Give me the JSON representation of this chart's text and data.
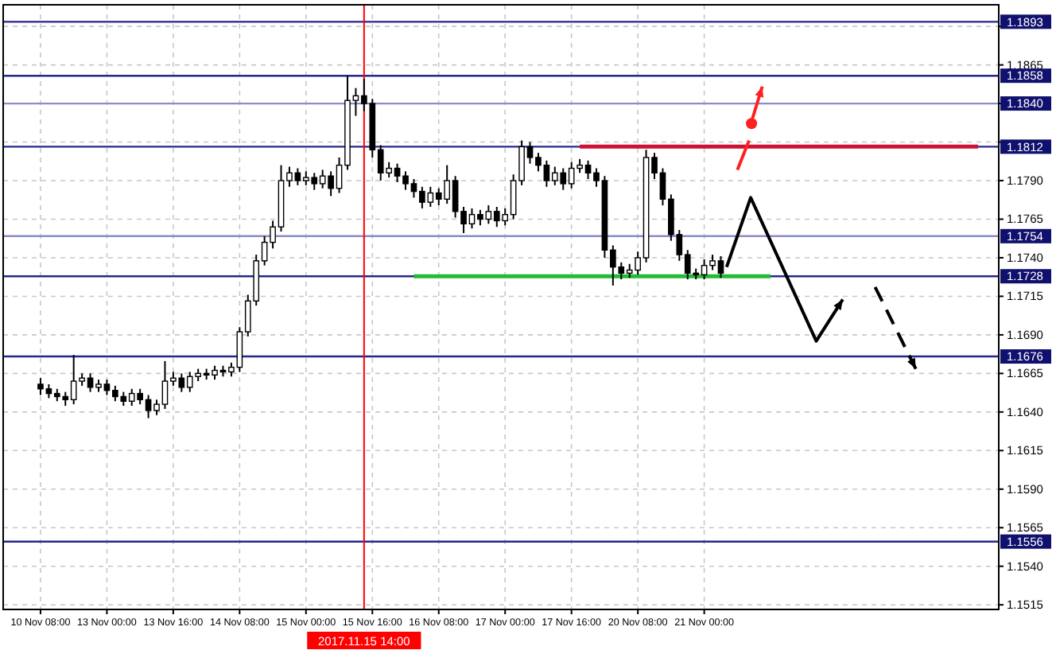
{
  "chart_data": {
    "type": "candlestick",
    "categories": [
      "10 Nov 08:00",
      null,
      null,
      null,
      null,
      null,
      null,
      null,
      "13 Nov 00:00",
      null,
      null,
      null,
      null,
      null,
      null,
      null,
      "13 Nov 16:00",
      null,
      null,
      null,
      null,
      null,
      null,
      null,
      "14 Nov 08:00",
      null,
      null,
      null,
      null,
      null,
      null,
      null,
      "15 Nov 00:00",
      null,
      null,
      null,
      null,
      null,
      null,
      null,
      "15 Nov 16:00",
      null,
      null,
      null,
      null,
      null,
      null,
      null,
      "16 Nov 08:00",
      null,
      null,
      null,
      null,
      null,
      null,
      null,
      "17 Nov 00:00",
      null,
      null,
      null,
      null,
      null,
      null,
      null,
      "17 Nov 16:00",
      null,
      null,
      null,
      null,
      null,
      null,
      null,
      "20 Nov 08:00",
      null,
      null,
      null,
      null,
      null,
      null,
      null,
      "21 Nov 00:00",
      null,
      null,
      null,
      null,
      null,
      null,
      null,
      null,
      null,
      null,
      null,
      null,
      null,
      null,
      null,
      null,
      null,
      null,
      null,
      null,
      null,
      null,
      null,
      null,
      null,
      null,
      null,
      null,
      null,
      null,
      null,
      null,
      null,
      null,
      null
    ],
    "ohlc": [
      [
        1.1658,
        1.1662,
        1.1651,
        1.1655
      ],
      [
        1.1655,
        1.1658,
        1.1649,
        1.1652
      ],
      [
        1.1652,
        1.1655,
        1.1647,
        1.165
      ],
      [
        1.165,
        1.1653,
        1.1644,
        1.1648
      ],
      [
        1.1648,
        1.1677,
        1.1645,
        1.166
      ],
      [
        1.166,
        1.1665,
        1.1657,
        1.1662
      ],
      [
        1.1662,
        1.1665,
        1.1653,
        1.1656
      ],
      [
        1.1656,
        1.1661,
        1.1653,
        1.1658
      ],
      [
        1.1658,
        1.1661,
        1.1651,
        1.1654
      ],
      [
        1.1654,
        1.1657,
        1.1647,
        1.165
      ],
      [
        1.165,
        1.1653,
        1.1644,
        1.1647
      ],
      [
        1.1647,
        1.1655,
        1.1644,
        1.1652
      ],
      [
        1.1652,
        1.1655,
        1.1645,
        1.1648
      ],
      [
        1.1648,
        1.1651,
        1.1636,
        1.1641
      ],
      [
        1.1641,
        1.1648,
        1.1638,
        1.1645
      ],
      [
        1.1645,
        1.1673,
        1.1642,
        1.166
      ],
      [
        1.166,
        1.1666,
        1.1657,
        1.1662
      ],
      [
        1.1662,
        1.1665,
        1.1653,
        1.1656
      ],
      [
        1.1656,
        1.1666,
        1.1653,
        1.1663
      ],
      [
        1.1663,
        1.1668,
        1.166,
        1.1665
      ],
      [
        1.1665,
        1.1668,
        1.1661,
        1.1664
      ],
      [
        1.1664,
        1.167,
        1.1661,
        1.1667
      ],
      [
        1.1667,
        1.167,
        1.1663,
        1.1666
      ],
      [
        1.1666,
        1.1672,
        1.1663,
        1.1669
      ],
      [
        1.1669,
        1.1695,
        1.1666,
        1.1692
      ],
      [
        1.1692,
        1.1716,
        1.1689,
        1.1712
      ],
      [
        1.1712,
        1.1742,
        1.1709,
        1.1738
      ],
      [
        1.1738,
        1.1754,
        1.1735,
        1.175
      ],
      [
        1.175,
        1.1764,
        1.1746,
        1.176
      ],
      [
        1.176,
        1.18,
        1.1757,
        1.179
      ],
      [
        1.179,
        1.1799,
        1.1786,
        1.1795
      ],
      [
        1.1795,
        1.1798,
        1.1787,
        1.179
      ],
      [
        1.179,
        1.1796,
        1.1787,
        1.1792
      ],
      [
        1.1792,
        1.1795,
        1.1784,
        1.1788
      ],
      [
        1.1788,
        1.1797,
        1.1785,
        1.1793
      ],
      [
        1.1793,
        1.1796,
        1.178,
        1.1785
      ],
      [
        1.1785,
        1.1805,
        1.1782,
        1.18
      ],
      [
        1.18,
        1.1858,
        1.1797,
        1.1842
      ],
      [
        1.1842,
        1.185,
        1.1832,
        1.1845
      ],
      [
        1.1845,
        1.1856,
        1.1835,
        1.184
      ],
      [
        1.184,
        1.1843,
        1.1805,
        1.181
      ],
      [
        1.181,
        1.1813,
        1.179,
        1.1795
      ],
      [
        1.1795,
        1.1802,
        1.1792,
        1.1798
      ],
      [
        1.1798,
        1.1801,
        1.1789,
        1.1793
      ],
      [
        1.1793,
        1.1796,
        1.1784,
        1.1788
      ],
      [
        1.1788,
        1.1791,
        1.1779,
        1.1783
      ],
      [
        1.1783,
        1.1786,
        1.1772,
        1.1776
      ],
      [
        1.1776,
        1.1786,
        1.1773,
        1.1782
      ],
      [
        1.1782,
        1.1785,
        1.1774,
        1.1778
      ],
      [
        1.1778,
        1.18,
        1.1775,
        1.179
      ],
      [
        1.179,
        1.1793,
        1.1766,
        1.177
      ],
      [
        1.177,
        1.1773,
        1.1756,
        1.1762
      ],
      [
        1.1762,
        1.1772,
        1.1759,
        1.1768
      ],
      [
        1.1768,
        1.1771,
        1.1761,
        1.1765
      ],
      [
        1.1765,
        1.1774,
        1.1762,
        1.177
      ],
      [
        1.177,
        1.1773,
        1.176,
        1.1764
      ],
      [
        1.1764,
        1.1772,
        1.1761,
        1.1768
      ],
      [
        1.1768,
        1.1794,
        1.1765,
        1.179
      ],
      [
        1.179,
        1.1816,
        1.1787,
        1.1812
      ],
      [
        1.1812,
        1.1815,
        1.1801,
        1.1805
      ],
      [
        1.1805,
        1.1808,
        1.1796,
        1.18
      ],
      [
        1.18,
        1.1803,
        1.1786,
        1.179
      ],
      [
        1.179,
        1.1799,
        1.1787,
        1.1795
      ],
      [
        1.1795,
        1.1798,
        1.1784,
        1.1788
      ],
      [
        1.1788,
        1.1802,
        1.1785,
        1.1798
      ],
      [
        1.1798,
        1.1804,
        1.1795,
        1.18
      ],
      [
        1.18,
        1.1803,
        1.1791,
        1.1795
      ],
      [
        1.1795,
        1.1798,
        1.1786,
        1.179
      ],
      [
        1.179,
        1.1793,
        1.174,
        1.1745
      ],
      [
        1.1745,
        1.1748,
        1.1722,
        1.1734
      ],
      [
        1.1734,
        1.1737,
        1.1726,
        1.173
      ],
      [
        1.173,
        1.1736,
        1.1727,
        1.1732
      ],
      [
        1.1732,
        1.1744,
        1.1729,
        1.174
      ],
      [
        1.174,
        1.181,
        1.1737,
        1.1805
      ],
      [
        1.1805,
        1.1808,
        1.1791,
        1.1795
      ],
      [
        1.1795,
        1.1798,
        1.1774,
        1.1778
      ],
      [
        1.1778,
        1.1781,
        1.1751,
        1.1755
      ],
      [
        1.1755,
        1.1758,
        1.1738,
        1.1742
      ],
      [
        1.1742,
        1.1745,
        1.1726,
        1.173
      ],
      [
        1.173,
        1.1733,
        1.1726,
        1.1729
      ],
      [
        1.1729,
        1.1739,
        1.1726,
        1.1735
      ],
      [
        1.1735,
        1.1742,
        1.1732,
        1.1738
      ],
      [
        1.1738,
        1.1741,
        1.1727,
        1.173
      ],
      null,
      null,
      null,
      null,
      null,
      null,
      null,
      null,
      null,
      null,
      null,
      null,
      null,
      null,
      null,
      null,
      null,
      null,
      null,
      null,
      null,
      null,
      null,
      null,
      null,
      null,
      null,
      null,
      null,
      null,
      null,
      null,
      null
    ],
    "series": [
      {
        "type": "line",
        "color": "#22bb33",
        "values": [
          null,
          null,
          null,
          null,
          null,
          null,
          null,
          null,
          null,
          null,
          null,
          null,
          null,
          null,
          null,
          null,
          null,
          null,
          null,
          null,
          null,
          null,
          null,
          null,
          null,
          null,
          null,
          null,
          null,
          null,
          null,
          null,
          null,
          null,
          null,
          null,
          null,
          null,
          null,
          null,
          null,
          null,
          null,
          null,
          null,
          1.1728,
          1.1728,
          1.1728,
          1.1728,
          1.1728,
          1.1728,
          1.1728,
          1.1728,
          1.1728,
          1.1728,
          1.1728,
          1.1728,
          1.1728,
          1.1728,
          1.1728,
          1.1728,
          1.1728,
          1.1728,
          1.1728,
          1.1728,
          1.1728,
          1.1728,
          1.1728,
          1.1728,
          1.1728,
          1.1728,
          1.1728,
          1.1728,
          1.1728,
          1.1728,
          1.1728,
          1.1728,
          1.1728,
          1.1728,
          1.1728,
          1.1728,
          1.1728,
          1.1728,
          1.1728,
          1.1728,
          1.1728,
          1.1728,
          1.1728,
          1.1728,
          null,
          null,
          null,
          null,
          null,
          null,
          null,
          null,
          null,
          null,
          null,
          null,
          null,
          null,
          null,
          null,
          null,
          null,
          null,
          null,
          null,
          null,
          null,
          null,
          null,
          null,
          null
        ]
      },
      {
        "type": "line",
        "color": "#cc1133",
        "values": [
          null,
          null,
          null,
          null,
          null,
          null,
          null,
          null,
          null,
          null,
          null,
          null,
          null,
          null,
          null,
          null,
          null,
          null,
          null,
          null,
          null,
          null,
          null,
          null,
          null,
          null,
          null,
          null,
          null,
          null,
          null,
          null,
          null,
          null,
          null,
          null,
          null,
          null,
          null,
          null,
          null,
          null,
          null,
          null,
          null,
          null,
          null,
          null,
          null,
          null,
          null,
          null,
          null,
          null,
          null,
          null,
          null,
          null,
          null,
          null,
          null,
          null,
          null,
          null,
          null,
          1.1812,
          1.1812,
          1.1812,
          1.1812,
          1.1812,
          1.1812,
          1.1812,
          1.1812,
          1.1812,
          1.1812,
          1.1812,
          1.1812,
          1.1812,
          1.1812,
          1.1812,
          1.1812,
          1.1812,
          1.1812,
          1.1812,
          1.1812,
          1.1812,
          1.1812,
          1.1812,
          1.1812,
          1.1812,
          1.1812,
          1.1812,
          1.1812,
          1.1812,
          1.1812,
          1.1812,
          1.1812,
          1.1812,
          1.1812,
          1.1812,
          1.1812,
          1.1812,
          1.1812,
          1.1812,
          1.1812,
          1.1812,
          1.1812,
          1.1812,
          1.1812,
          1.1812,
          1.1812,
          1.1812,
          1.1812,
          1.1812,
          null,
          null
        ]
      }
    ],
    "ylim": [
      1.1512,
      1.1904
    ],
    "yticks": [
      1.1515,
      {
        "value": 1.154,
        "label": "1.1540"
      },
      1.1565,
      {
        "value": 1.159,
        "label": "1.1590"
      },
      1.1615,
      {
        "value": 1.164,
        "label": "1.1640"
      },
      1.1665,
      {
        "value": 1.169,
        "label": "1.1690"
      },
      1.1715,
      {
        "value": 1.174,
        "label": "1.1740"
      },
      1.1765,
      {
        "value": 1.179,
        "label": "1.1790"
      },
      {
        "value": 1.1815,
        "label": null
      },
      {
        "value": 1.184,
        "label": null
      },
      1.1865,
      {
        "value": 1.189,
        "label": null
      }
    ],
    "grid": true,
    "ref_lines": [
      {
        "axis": "y",
        "value": 1.1893,
        "label": "1.1893",
        "color": "#26268c"
      },
      {
        "axis": "y",
        "value": 1.1858,
        "label": "1.1858",
        "color": "#26268c"
      },
      {
        "axis": "y",
        "value": 1.184,
        "label": "1.1840",
        "color": "#8c8cc8"
      },
      {
        "axis": "y",
        "value": 1.1812,
        "label": "1.1812",
        "color": "#26268c"
      },
      {
        "axis": "y",
        "value": 1.1754,
        "label": "1.1754",
        "color": "#8c8cc8"
      },
      {
        "axis": "y",
        "value": 1.1728,
        "label": "1.1728",
        "color": "#26268c"
      },
      {
        "axis": "y",
        "value": 1.1676,
        "label": "1.1676",
        "color": "#26268c"
      },
      {
        "axis": "y",
        "value": 1.1556,
        "label": "1.1556",
        "color": "#26268c"
      },
      {
        "axis": "x",
        "value": "2017.11.15 14:00",
        "color": "#ff0000"
      }
    ]
  }
}
